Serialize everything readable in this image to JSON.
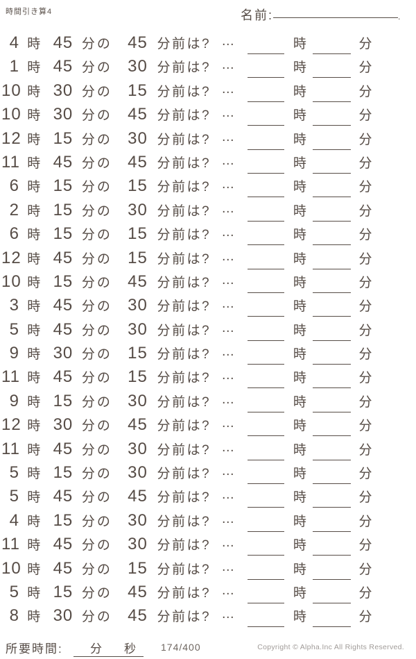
{
  "header": {
    "title": "時間引き算4",
    "name_label": "名前:",
    "name_suffix": "."
  },
  "row_labels": {
    "hour_unit": "時",
    "minute_of": "分の",
    "minutes_before_q": "分前は?",
    "dots": "…",
    "answer_hour_unit": "時",
    "answer_minute_unit": "分"
  },
  "problems": [
    {
      "hour": "4",
      "minute": "45",
      "before": "45"
    },
    {
      "hour": "1",
      "minute": "45",
      "before": "30"
    },
    {
      "hour": "10",
      "minute": "30",
      "before": "15"
    },
    {
      "hour": "10",
      "minute": "30",
      "before": "45"
    },
    {
      "hour": "12",
      "minute": "15",
      "before": "30"
    },
    {
      "hour": "11",
      "minute": "45",
      "before": "45"
    },
    {
      "hour": "6",
      "minute": "15",
      "before": "15"
    },
    {
      "hour": "2",
      "minute": "15",
      "before": "30"
    },
    {
      "hour": "6",
      "minute": "15",
      "before": "15"
    },
    {
      "hour": "12",
      "minute": "45",
      "before": "15"
    },
    {
      "hour": "10",
      "minute": "15",
      "before": "45"
    },
    {
      "hour": "3",
      "minute": "45",
      "before": "30"
    },
    {
      "hour": "5",
      "minute": "45",
      "before": "30"
    },
    {
      "hour": "9",
      "minute": "30",
      "before": "15"
    },
    {
      "hour": "11",
      "minute": "45",
      "before": "15"
    },
    {
      "hour": "9",
      "minute": "15",
      "before": "30"
    },
    {
      "hour": "12",
      "minute": "30",
      "before": "45"
    },
    {
      "hour": "11",
      "minute": "45",
      "before": "30"
    },
    {
      "hour": "5",
      "minute": "15",
      "before": "30"
    },
    {
      "hour": "5",
      "minute": "45",
      "before": "45"
    },
    {
      "hour": "4",
      "minute": "15",
      "before": "30"
    },
    {
      "hour": "11",
      "minute": "45",
      "before": "30"
    },
    {
      "hour": "10",
      "minute": "45",
      "before": "15"
    },
    {
      "hour": "5",
      "minute": "15",
      "before": "45"
    },
    {
      "hour": "8",
      "minute": "30",
      "before": "45"
    }
  ],
  "footer": {
    "time_label": "所要時間:",
    "minute_unit": "分",
    "second_unit": "秒",
    "counter": "174/400",
    "copyright": "Copyright ©  Alpha.Inc All Rights Reserved."
  },
  "colors": {
    "text": "#564c46",
    "muted": "#a09b98"
  }
}
